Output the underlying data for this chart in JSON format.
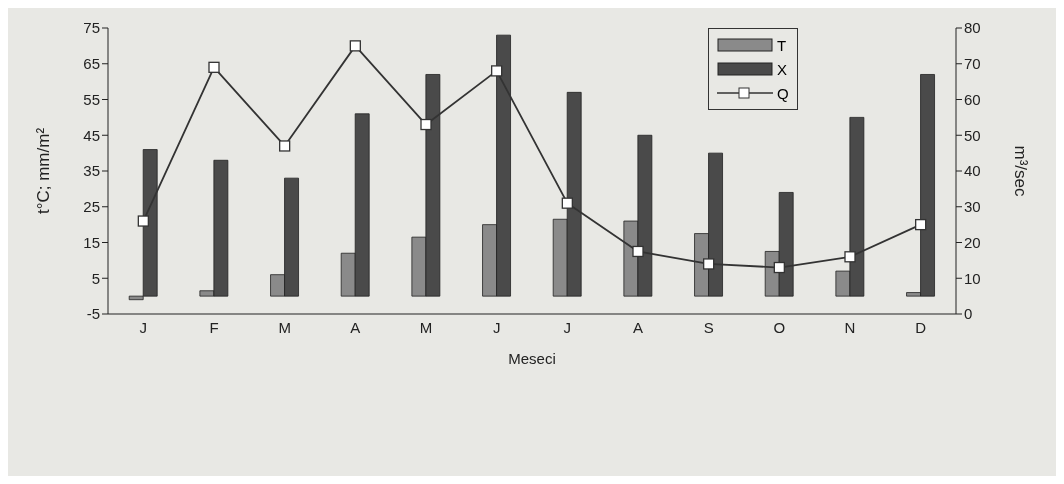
{
  "chart_data": {
    "type": "bar",
    "xlabel": "Meseci",
    "ylabel": "t°C; mm/m²",
    "y2label": "m³/sec",
    "categories": [
      "J",
      "F",
      "M",
      "A",
      "M",
      "J",
      "J",
      "A",
      "S",
      "O",
      "N",
      "D"
    ],
    "series": [
      {
        "name": "T",
        "color": "#8a8a8a",
        "values": [
          -1,
          1.5,
          6,
          12,
          16.5,
          20,
          21.5,
          21,
          17.5,
          12.5,
          7,
          1
        ]
      },
      {
        "name": "X",
        "color": "#4a4a4a",
        "values": [
          41,
          38,
          33,
          51,
          62,
          73,
          57,
          45,
          40,
          29,
          50,
          62
        ]
      },
      {
        "name": "Q",
        "type": "line",
        "axis": "y2",
        "color": "#333333",
        "values": [
          26,
          69,
          47,
          75,
          53,
          68,
          31,
          17.5,
          14,
          13,
          16,
          25
        ]
      }
    ],
    "ylim": [
      -5,
      75
    ],
    "yticks": [
      -5,
      5,
      15,
      25,
      35,
      45,
      55,
      65,
      75
    ],
    "y2lim": [
      0,
      80
    ],
    "y2ticks": [
      0,
      10,
      20,
      30,
      40,
      50,
      60,
      70,
      80
    ],
    "grid": false,
    "legend": "top right",
    "marker": "square",
    "line_style": "solid"
  }
}
